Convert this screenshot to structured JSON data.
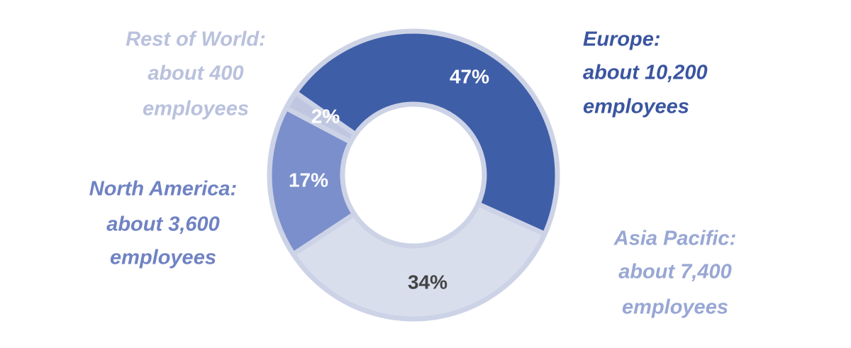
{
  "chart_data": {
    "type": "donut",
    "categories": [
      "Europe",
      "Asia Pacific",
      "North America",
      "Rest of World"
    ],
    "values": [
      47,
      34,
      17,
      2
    ],
    "value_labels": [
      "47%",
      "34%",
      "17%",
      "2%"
    ],
    "callouts": [
      [
        "Europe:",
        "about 10,200",
        "employees"
      ],
      [
        "Asia Pacific:",
        "about 7,400",
        "employees"
      ],
      [
        "North America:",
        "about 3,600",
        "employees"
      ],
      [
        "Rest of World:",
        "about 400",
        "employees"
      ]
    ],
    "colors": [
      "#3f5ea8",
      "#d9deec",
      "#7b8fcc",
      "#bfc7e0"
    ],
    "callout_colors": [
      "#3a55a0",
      "#98a7d4",
      "#6f82c3",
      "#b9c1dd"
    ],
    "value_label_colors": [
      "#ffffff",
      "#444444",
      "#ffffff",
      "#ffffff"
    ]
  }
}
